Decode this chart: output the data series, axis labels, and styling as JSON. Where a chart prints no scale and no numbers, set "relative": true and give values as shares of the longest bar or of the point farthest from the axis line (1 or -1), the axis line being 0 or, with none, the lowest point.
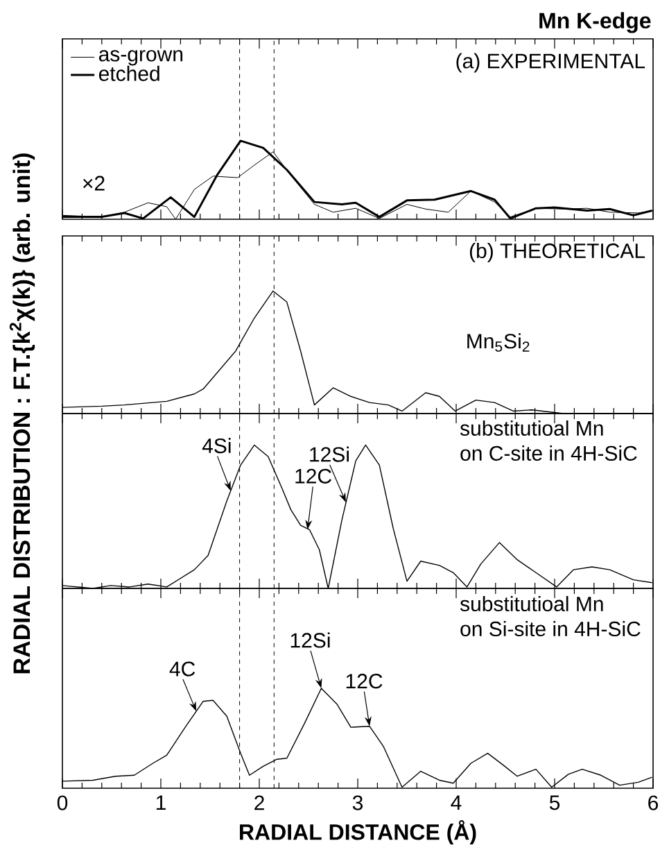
{
  "chart_data": [
    {
      "type": "line",
      "title": "Mn K-edge",
      "ylabel": "RADIAL DISTRIBUTION : F.T.{k$^{2}$χ(k)} (arb. unit)",
      "relative": true,
      "xlim": [
        0,
        6
      ],
      "xticks": [
        0,
        1,
        2,
        3,
        4,
        5,
        6
      ],
      "tick_labels": false,
      "legend": "top left",
      "annotations": [
        "(a) EXPERIMENTAL",
        "×2"
      ],
      "ref_lines": [
        {
          "axis": "x",
          "value": 1.8,
          "line_style": "dashed"
        },
        {
          "axis": "x",
          "value": 2.15,
          "line_style": "dashed"
        }
      ],
      "series": [
        {
          "name": "as-grown",
          "color": "#000000",
          "x": [
            0,
            0.4,
            0.63,
            0.87,
            1.06,
            1.15,
            1.34,
            1.53,
            1.78,
            1.95,
            2.14,
            2.32,
            2.56,
            2.75,
            2.98,
            3.22,
            3.5,
            3.69,
            3.92,
            4.15,
            4.39,
            4.55,
            4.81,
            5.09,
            5.33,
            5.56,
            5.85,
            5.99
          ],
          "values": [
            0.05,
            0.03,
            0.09,
            0.21,
            0.16,
            0.0,
            0.38,
            0.55,
            0.53,
            0.69,
            0.86,
            0.56,
            0.19,
            0.09,
            0.14,
            0.01,
            0.19,
            0.13,
            0.09,
            0.36,
            0.22,
            0.03,
            0.14,
            0.13,
            0.14,
            0.09,
            0.08,
            0.11
          ]
        },
        {
          "name": "etched",
          "color": "#000000",
          "x": [
            0,
            0.4,
            0.63,
            0.82,
            1.1,
            1.34,
            1.57,
            1.81,
            2.04,
            2.28,
            2.56,
            2.84,
            2.98,
            3.22,
            3.5,
            3.78,
            4.15,
            4.39,
            4.55,
            4.81,
            5.0,
            5.33,
            5.56,
            5.8,
            5.99
          ],
          "values": [
            0.03,
            0.03,
            0.08,
            0.01,
            0.28,
            0.03,
            0.56,
            1.0,
            0.91,
            0.63,
            0.22,
            0.19,
            0.21,
            0.03,
            0.24,
            0.25,
            0.36,
            0.25,
            0.01,
            0.14,
            0.15,
            0.11,
            0.13,
            0.05,
            0.11
          ]
        }
      ]
    },
    {
      "type": "line",
      "relative": true,
      "xlim": [
        0,
        6
      ],
      "xticks": [
        0,
        1,
        2,
        3,
        4,
        5,
        6
      ],
      "tick_labels": false,
      "annotations": [
        "(b) THEORETICAL"
      ],
      "ref_lines": [
        {
          "axis": "x",
          "value": 1.8,
          "line_style": "dashed"
        },
        {
          "axis": "x",
          "value": 2.15,
          "line_style": "dashed"
        }
      ],
      "series": [
        {
          "name": "Mn$_{5}$Si$_{2}$",
          "color": "#000000",
          "x": [
            0,
            0.4,
            0.63,
            1.06,
            1.34,
            1.43,
            1.76,
            1.95,
            2.14,
            2.28,
            2.42,
            2.56,
            2.75,
            2.93,
            3.12,
            3.31,
            3.45,
            3.69,
            3.83,
            3.99,
            4.2,
            4.39,
            4.58,
            4.77,
            5.09,
            5.99
          ],
          "values": [
            0.05,
            0.06,
            0.07,
            0.1,
            0.16,
            0.2,
            0.51,
            0.78,
            1.0,
            0.91,
            0.51,
            0.07,
            0.21,
            0.14,
            0.09,
            0.07,
            0.02,
            0.17,
            0.14,
            0.02,
            0.11,
            0.09,
            0.02,
            0.03,
            0.0,
            0.0
          ]
        }
      ]
    },
    {
      "type": "line",
      "relative": true,
      "xlim": [
        0,
        6
      ],
      "xticks": [
        0,
        1,
        2,
        3,
        4,
        5,
        6
      ],
      "tick_labels": false,
      "annotations": [
        {
          "text": "4Si",
          "x": 1.71,
          "y": 0.68
        },
        {
          "text": "12C",
          "x": 2.49,
          "y": 0.41
        },
        {
          "text": "12Si",
          "x": 2.88,
          "y": 0.6
        }
      ],
      "ref_lines": [
        {
          "axis": "x",
          "value": 1.8,
          "line_style": "dashed"
        },
        {
          "axis": "x",
          "value": 2.15,
          "line_style": "dashed"
        }
      ],
      "series": [
        {
          "name": "substitutioal Mn on C-site in 4H-SiC",
          "color": "#000000",
          "x": [
            0,
            0.31,
            0.49,
            0.68,
            0.87,
            1.06,
            1.34,
            1.48,
            1.67,
            1.81,
            1.95,
            2.09,
            2.23,
            2.32,
            2.42,
            2.51,
            2.61,
            2.7,
            2.84,
            2.98,
            3.08,
            3.22,
            3.36,
            3.5,
            3.64,
            3.83,
            3.97,
            4.11,
            4.25,
            4.44,
            4.62,
            4.81,
            5.02,
            5.19,
            5.38,
            5.56,
            5.8,
            5.99
          ],
          "values": [
            0.02,
            0.0,
            0.02,
            0.01,
            0.03,
            0.01,
            0.13,
            0.23,
            0.61,
            0.86,
            1.0,
            0.92,
            0.7,
            0.55,
            0.44,
            0.41,
            0.27,
            0.0,
            0.48,
            0.89,
            1.0,
            0.86,
            0.42,
            0.05,
            0.19,
            0.16,
            0.11,
            0.01,
            0.17,
            0.32,
            0.2,
            0.11,
            0.01,
            0.13,
            0.15,
            0.13,
            0.06,
            0.04
          ]
        }
      ]
    },
    {
      "type": "line",
      "relative": true,
      "xlim": [
        0,
        6
      ],
      "xticks": [
        0,
        1,
        2,
        3,
        4,
        5,
        6
      ],
      "tick_labels": "x",
      "xlabel": "RADIAL DISTANCE (Å)",
      "annotations": [
        {
          "text": "4C",
          "x": 1.36,
          "y": 0.77
        },
        {
          "text": "12Si",
          "x": 2.63,
          "y": 1.0
        },
        {
          "text": "12C",
          "x": 3.12,
          "y": 0.62
        }
      ],
      "ref_lines": [
        {
          "axis": "x",
          "value": 1.8,
          "line_style": "dashed"
        },
        {
          "axis": "x",
          "value": 2.15,
          "line_style": "dashed"
        }
      ],
      "series": [
        {
          "name": "substitutioal Mn on Si-site in 4H-SiC",
          "color": "#000000",
          "x": [
            0,
            0.31,
            0.54,
            0.73,
            0.92,
            1.06,
            1.24,
            1.43,
            1.53,
            1.67,
            1.81,
            1.9,
            2.04,
            2.18,
            2.28,
            2.46,
            2.63,
            2.79,
            2.93,
            3.12,
            3.26,
            3.45,
            3.64,
            3.83,
            3.97,
            4.15,
            4.32,
            4.48,
            4.62,
            4.81,
            4.97,
            5.14,
            5.28,
            5.47,
            5.66,
            5.85,
            5.99
          ],
          "values": [
            0.07,
            0.08,
            0.12,
            0.13,
            0.25,
            0.33,
            0.6,
            0.87,
            0.88,
            0.72,
            0.35,
            0.13,
            0.22,
            0.29,
            0.3,
            0.65,
            1.0,
            0.84,
            0.61,
            0.62,
            0.42,
            0.01,
            0.17,
            0.08,
            0.05,
            0.25,
            0.35,
            0.23,
            0.12,
            0.19,
            0.01,
            0.14,
            0.19,
            0.13,
            0.03,
            0.06,
            0.11
          ]
        }
      ]
    }
  ]
}
